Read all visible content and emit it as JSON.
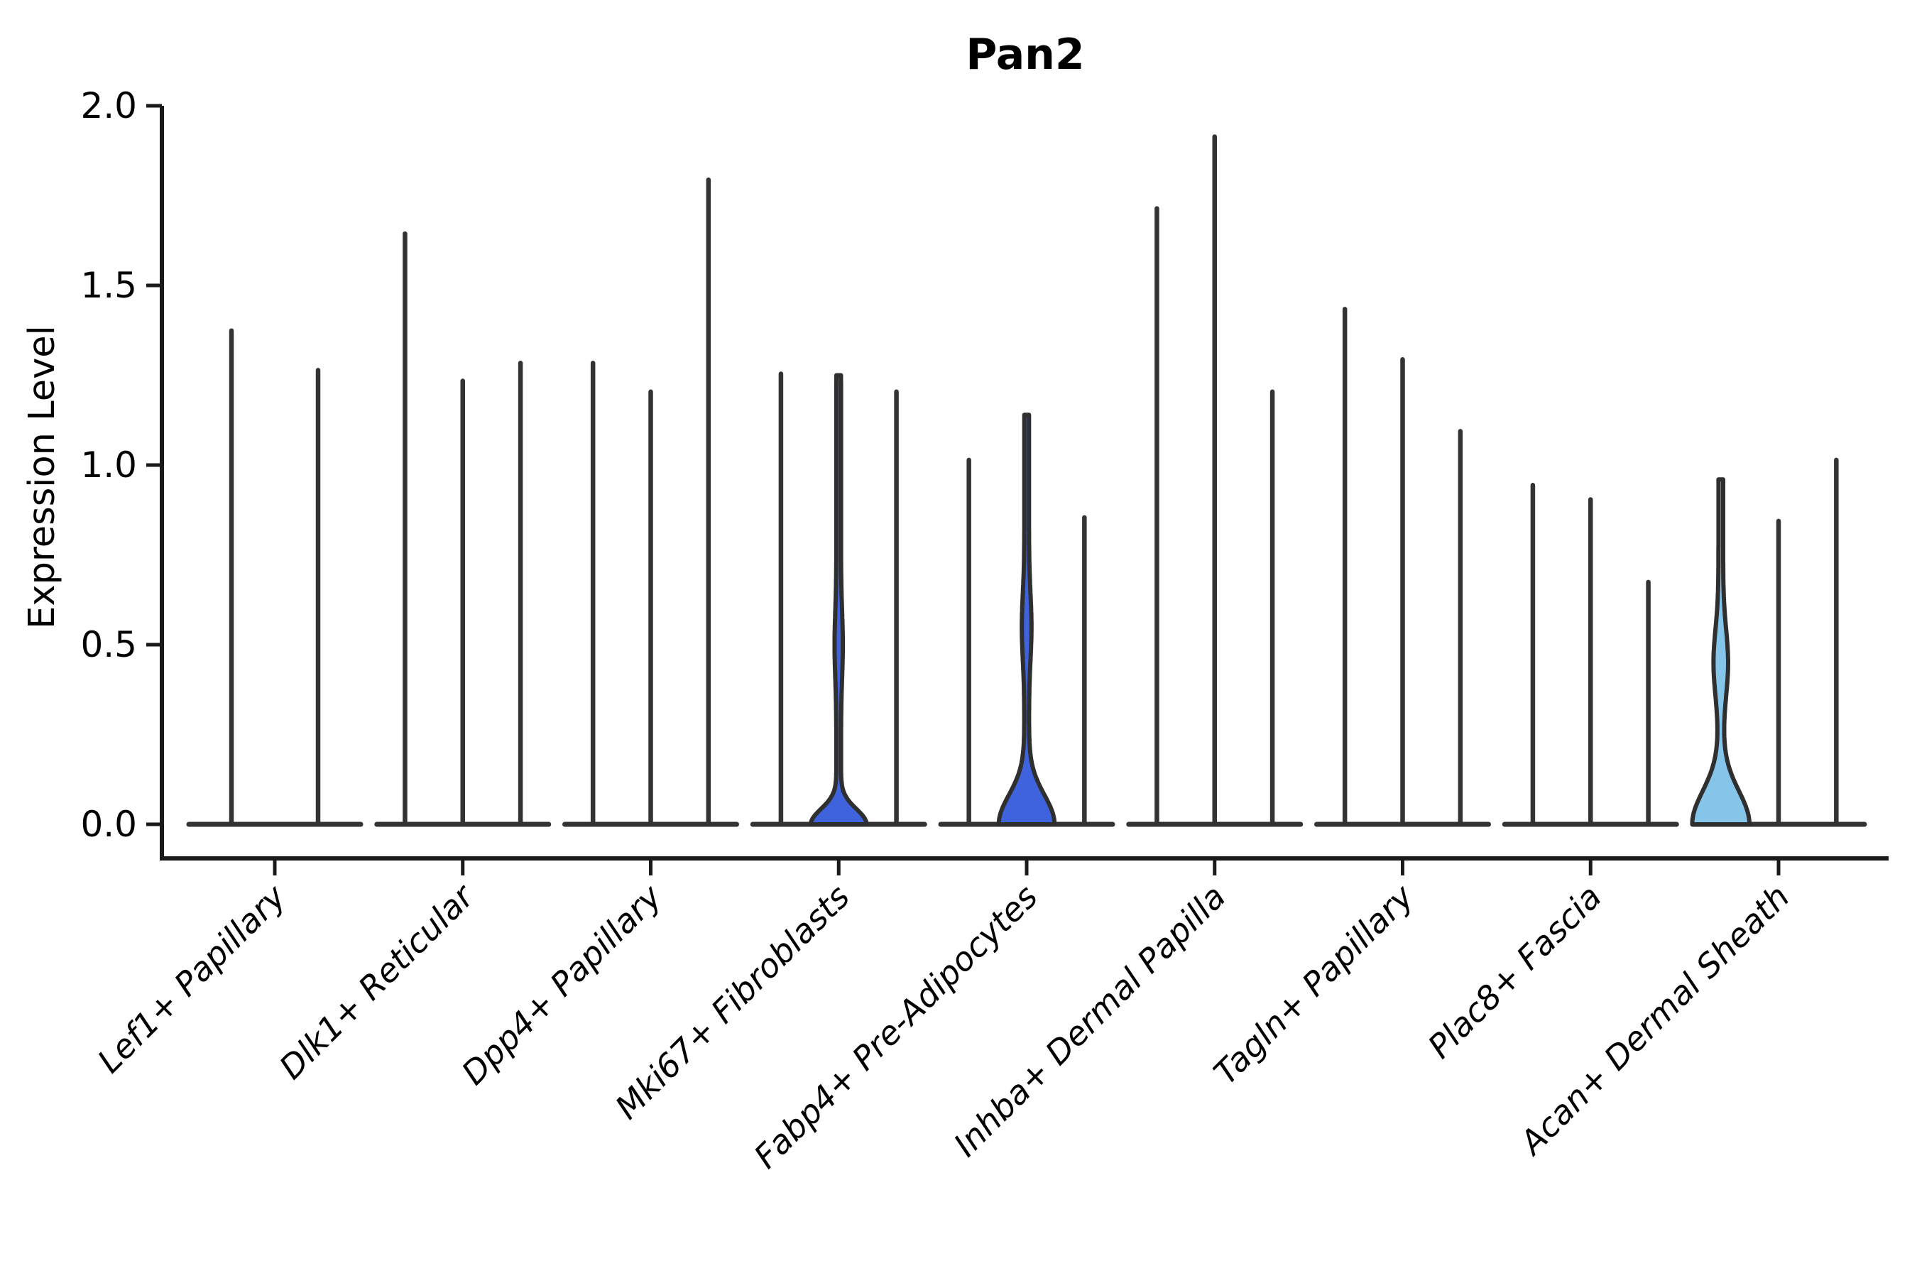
{
  "chart_data": {
    "type": "violin",
    "title": "Pan2",
    "ylabel": "Expression Level",
    "yticks": [
      0.0,
      0.5,
      1.0,
      1.5,
      2.0
    ],
    "ytick_labels": [
      "0.0",
      "0.5",
      "1.0",
      "1.5",
      "2.0"
    ],
    "ylim": [
      -0.1,
      2.0
    ],
    "grid": false,
    "legend": "none",
    "xlabel": "",
    "groups": [
      {
        "category": "Lef1+ Papillary",
        "violins": [
          {
            "max": 1.38
          },
          {
            "max": 1.27
          }
        ]
      },
      {
        "category": "Dlk1+ Reticular",
        "violins": [
          {
            "max": 1.65
          },
          {
            "max": 1.24
          },
          {
            "max": 1.29
          }
        ]
      },
      {
        "category": "Dpp4+ Papillary",
        "violins": [
          {
            "max": 1.29
          },
          {
            "max": 1.21
          },
          {
            "max": 1.8
          }
        ]
      },
      {
        "category": "Mki67+ Fibroblasts",
        "violins": [
          {
            "max": 1.26
          },
          {
            "max": 1.25,
            "fill": "blue",
            "profile": {
              "base_a": 36,
              "base_s": 0.06,
              "lens_a": 2.5,
              "lens_c": 0.5,
              "lens_s": 0.13
            }
          },
          {
            "max": 1.21
          }
        ]
      },
      {
        "category": "Fabp4+ Pre-Adipocytes",
        "violins": [
          {
            "max": 1.02
          },
          {
            "max": 1.14,
            "fill": "blue",
            "profile": {
              "base_a": 36,
              "base_s": 0.115,
              "lens_a": 3.5,
              "lens_c": 0.55,
              "lens_s": 0.13
            }
          },
          {
            "max": 0.86
          }
        ]
      },
      {
        "category": "Inhba+ Dermal Papilla",
        "violins": [
          {
            "max": 1.72
          },
          {
            "max": 1.92
          },
          {
            "max": 1.21
          }
        ]
      },
      {
        "category": "Tagln+ Papillary",
        "violins": [
          {
            "max": 1.44
          },
          {
            "max": 1.3
          },
          {
            "max": 1.1
          }
        ]
      },
      {
        "category": "Plac8+ Fascia",
        "violins": [
          {
            "max": 0.95
          },
          {
            "max": 0.91
          },
          {
            "max": 0.68
          }
        ]
      },
      {
        "category": "Acan+ Dermal Sheath",
        "violins": [
          {
            "max": 0.96,
            "fill": "sky",
            "profile": {
              "base_a": 37,
              "base_s": 0.13,
              "lens_a": 7,
              "lens_c": 0.45,
              "lens_s": 0.13
            }
          },
          {
            "max": 0.85
          },
          {
            "max": 1.02
          }
        ]
      }
    ],
    "colors": {
      "ink": "#333333",
      "violin_outline": "#2f2f2f",
      "blue": "#3F63DC",
      "sky": "#86C5EA",
      "background": "#ffffff"
    }
  }
}
